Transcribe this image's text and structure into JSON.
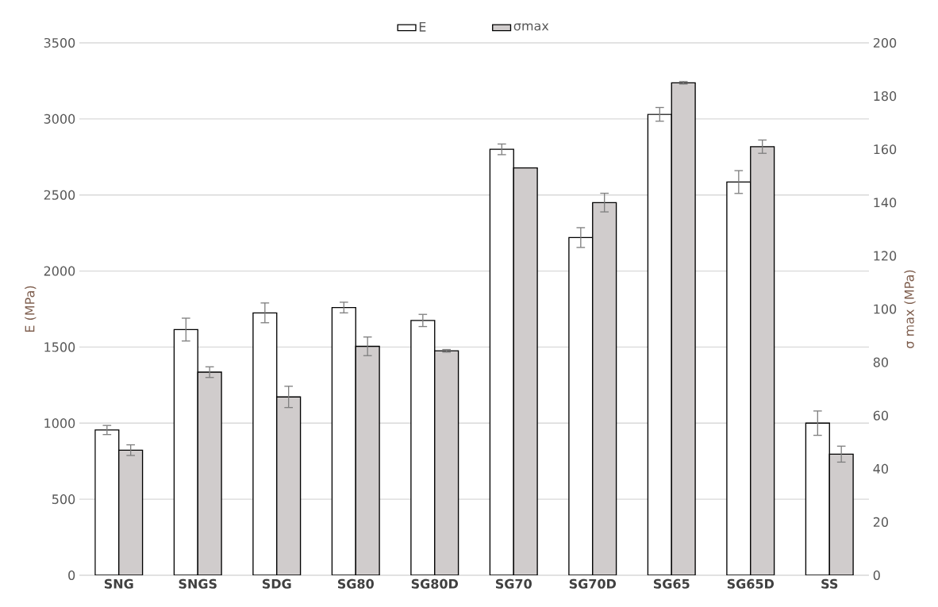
{
  "chart_data": {
    "type": "bar",
    "ylabel": "E (MPa)",
    "y2label": "σ max (MPa)",
    "categories": [
      "SNG",
      "SNGS",
      "SDG",
      "SG80",
      "SG80D",
      "SG70",
      "SG70D",
      "SG65",
      "SG65D",
      "SS"
    ],
    "series": [
      {
        "name": "E",
        "color": "#ffffff",
        "values": [
          955,
          1615,
          1725,
          1760,
          1675,
          2800,
          2220,
          3030,
          2585,
          1000
        ],
        "errors": [
          30,
          75,
          65,
          35,
          40,
          35,
          65,
          45,
          75,
          80
        ]
      },
      {
        "name": "σmax",
        "color": "#d0cccc",
        "axis": "y2",
        "values": [
          47,
          76.3,
          67,
          86,
          84.3,
          153,
          140,
          185,
          161,
          45.5
        ],
        "errors": [
          2,
          2,
          4,
          3.5,
          0.5,
          null,
          3.5,
          0.5,
          2.5,
          3
        ]
      }
    ],
    "ylim": [
      0,
      3500
    ],
    "yticks": [
      0,
      500,
      1000,
      1500,
      2000,
      2500,
      3000,
      3500
    ],
    "y2lim": [
      0,
      200
    ],
    "y2ticks": [
      0,
      20,
      40,
      60,
      80,
      100,
      120,
      140,
      160,
      180,
      200
    ],
    "grid": "y",
    "legend": "top"
  }
}
